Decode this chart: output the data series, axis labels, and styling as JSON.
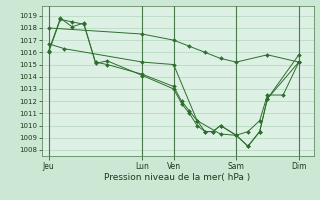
{
  "xlabel": "Pression niveau de la mer( hPa )",
  "bg_color": "#cce8d4",
  "plot_bg_color": "#ddf0e4",
  "grid_color": "#aacfb4",
  "line_color": "#2d6e2d",
  "vline_color": "#4a7a4a",
  "ylim": [
    1007.5,
    1019.8
  ],
  "yticks": [
    1008,
    1009,
    1010,
    1011,
    1012,
    1013,
    1014,
    1015,
    1016,
    1017,
    1018,
    1019
  ],
  "day_positions": [
    0.0,
    4.0,
    5.33,
    8.0,
    10.67
  ],
  "day_labels": [
    "Jeu",
    "Lun",
    "Ven",
    "Sam",
    "Dim"
  ],
  "series": [
    {
      "x": [
        0.0,
        4.0,
        5.33,
        6.0,
        6.67,
        7.33,
        8.0,
        9.33,
        10.67
      ],
      "y": [
        1018.0,
        1017.5,
        1017.0,
        1016.5,
        1016.0,
        1015.5,
        1015.2,
        1015.8,
        1015.2
      ]
    },
    {
      "x": [
        0.0,
        0.5,
        1.0,
        1.5,
        2.0,
        2.5,
        4.0,
        5.33,
        5.67,
        6.0,
        6.33,
        6.67,
        7.0,
        7.33,
        8.0,
        8.5,
        9.0,
        9.33,
        10.67
      ],
      "y": [
        1016.0,
        1018.7,
        1018.5,
        1018.3,
        1015.2,
        1015.0,
        1014.2,
        1013.2,
        1012.0,
        1011.2,
        1010.4,
        1009.5,
        1009.5,
        1010.0,
        1009.2,
        1008.3,
        1009.5,
        1012.2,
        1015.8
      ]
    },
    {
      "x": [
        0.0,
        0.5,
        1.0,
        1.5,
        2.0,
        2.5,
        4.0,
        5.33,
        5.67,
        6.0,
        6.33,
        6.67,
        7.0,
        7.33,
        8.0,
        8.5,
        9.0,
        9.33,
        10.67
      ],
      "y": [
        1016.1,
        1018.8,
        1018.1,
        1018.4,
        1015.1,
        1015.3,
        1014.1,
        1013.0,
        1011.8,
        1011.0,
        1010.0,
        1009.5,
        1009.5,
        1010.0,
        1009.2,
        1008.3,
        1009.5,
        1012.2,
        1015.2
      ]
    },
    {
      "x": [
        0.0,
        0.67,
        4.0,
        5.33,
        6.33,
        7.33,
        8.0,
        8.5,
        9.0,
        9.33,
        10.0,
        10.67
      ],
      "y": [
        1016.7,
        1016.3,
        1015.2,
        1015.0,
        1010.4,
        1009.3,
        1009.2,
        1009.5,
        1010.4,
        1012.5,
        1012.5,
        1015.2
      ]
    }
  ]
}
